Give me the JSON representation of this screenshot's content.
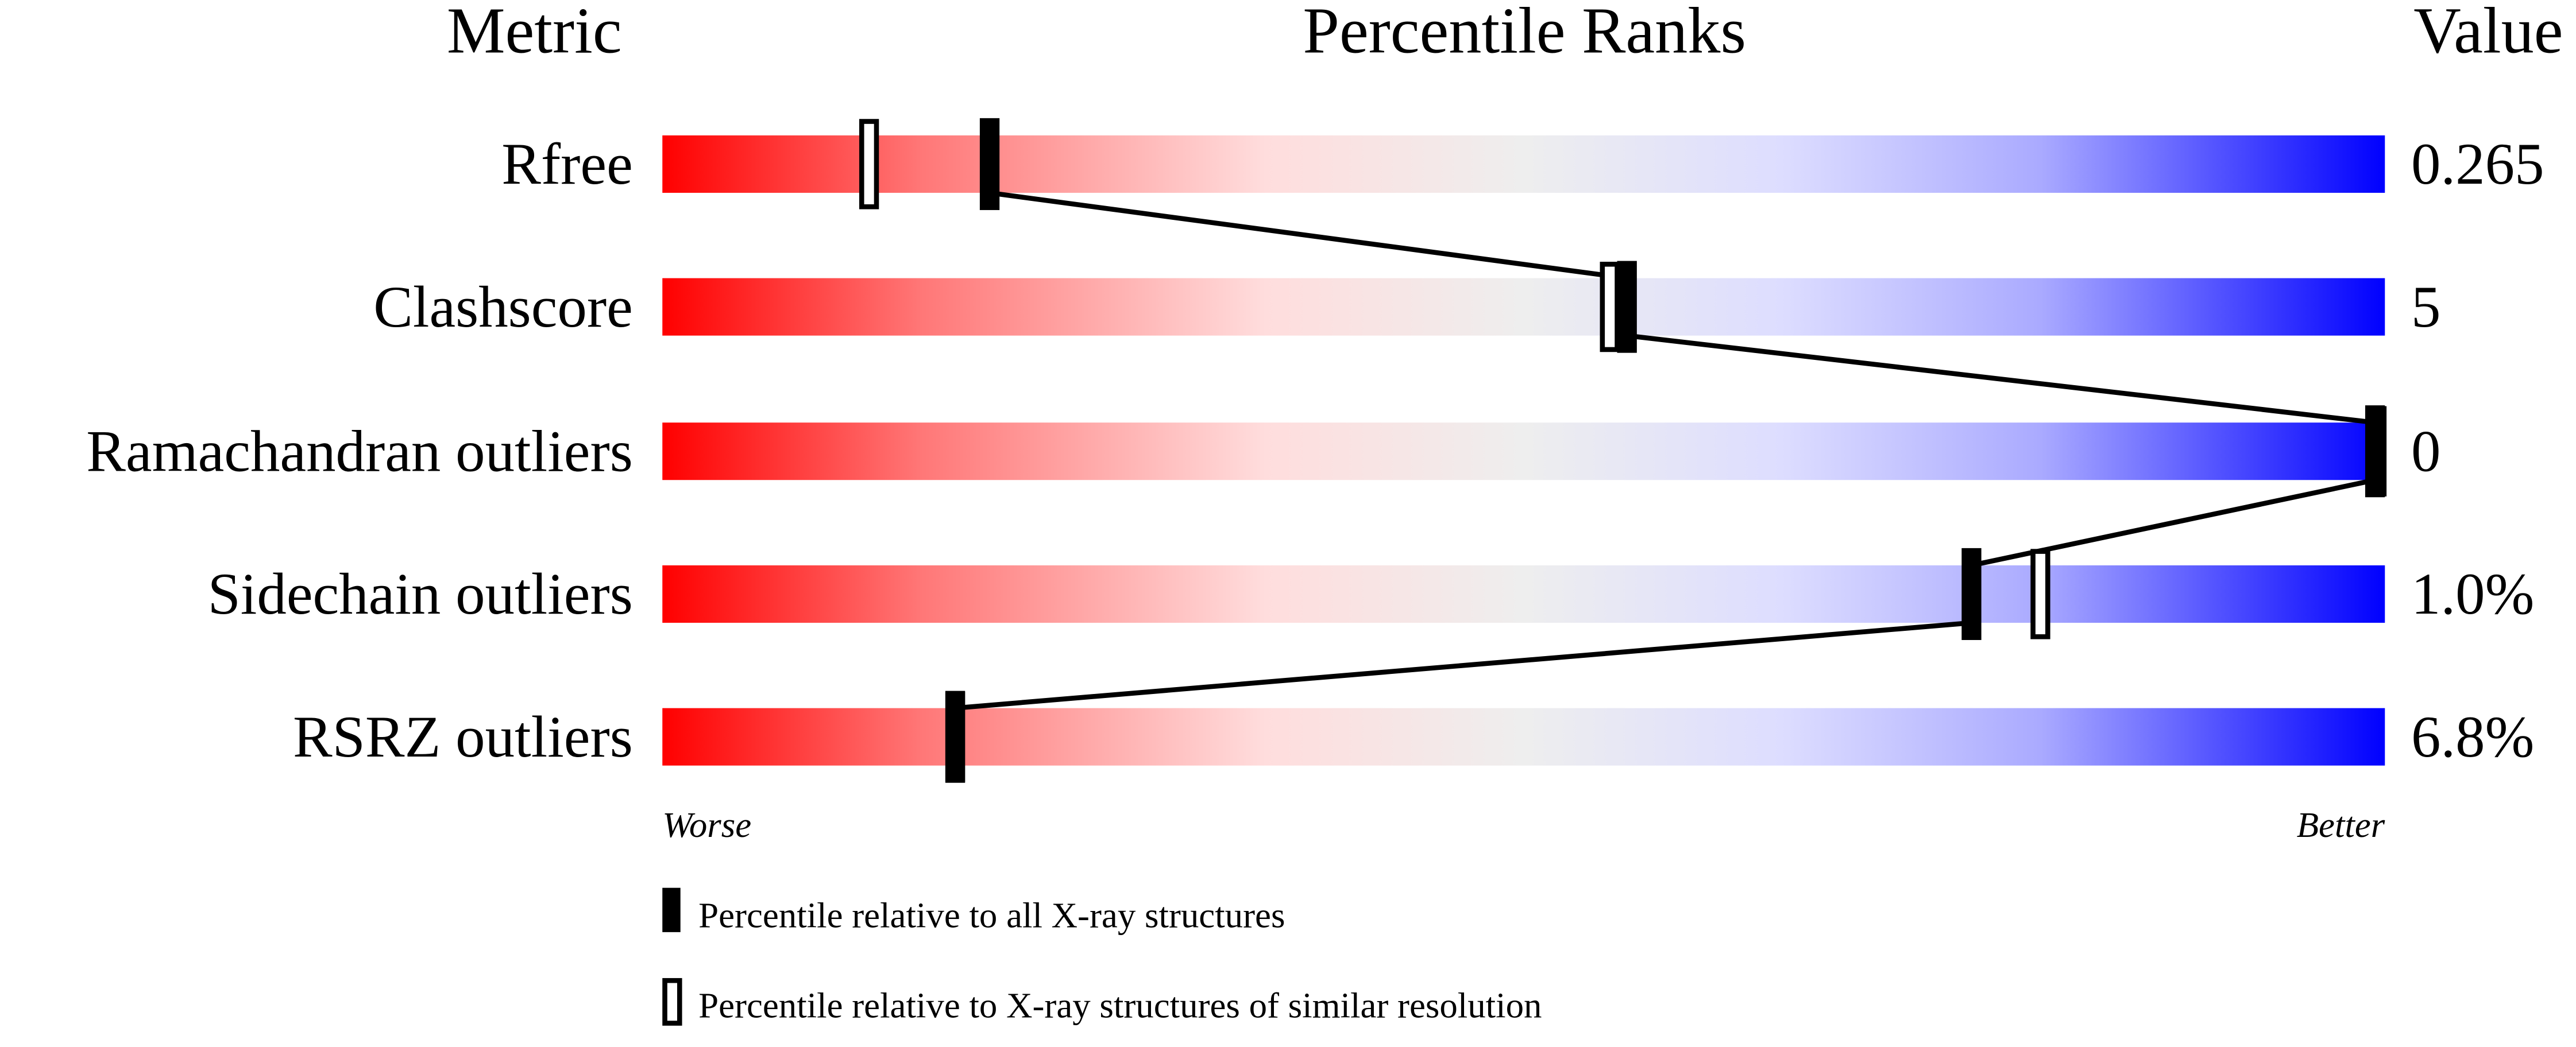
{
  "chart_data": {
    "type": "percentile-slider",
    "headers": {
      "metric": "Metric",
      "ranks": "Percentile Ranks",
      "value": "Value"
    },
    "xlim": [
      0,
      100
    ],
    "scale_labels": {
      "left": "Worse",
      "right": "Better"
    },
    "gradient_colors": [
      "#ff0000",
      "#ff7777",
      "#ffdddd",
      "#eeeeee",
      "#ddddff",
      "#aaaaff",
      "#0000ff"
    ],
    "metrics": [
      {
        "name": "Rfree",
        "value": "0.265",
        "percentile_all": 19,
        "percentile_similar": 12
      },
      {
        "name": "Clashscore",
        "value": "5",
        "percentile_all": 56,
        "percentile_similar": 55
      },
      {
        "name": "Ramachandran outliers",
        "value": "0",
        "percentile_all": 100,
        "percentile_similar": 100
      },
      {
        "name": "Sidechain outliers",
        "value": "1.0%",
        "percentile_all": 76,
        "percentile_similar": 80
      },
      {
        "name": "RSRZ outliers",
        "value": "6.8%",
        "percentile_all": 17,
        "percentile_similar": 17
      }
    ],
    "legend": [
      {
        "marker": "filled",
        "label": "Percentile relative to all X-ray structures"
      },
      {
        "marker": "outline",
        "label": "Percentile relative to X-ray structures of similar resolution"
      }
    ]
  }
}
